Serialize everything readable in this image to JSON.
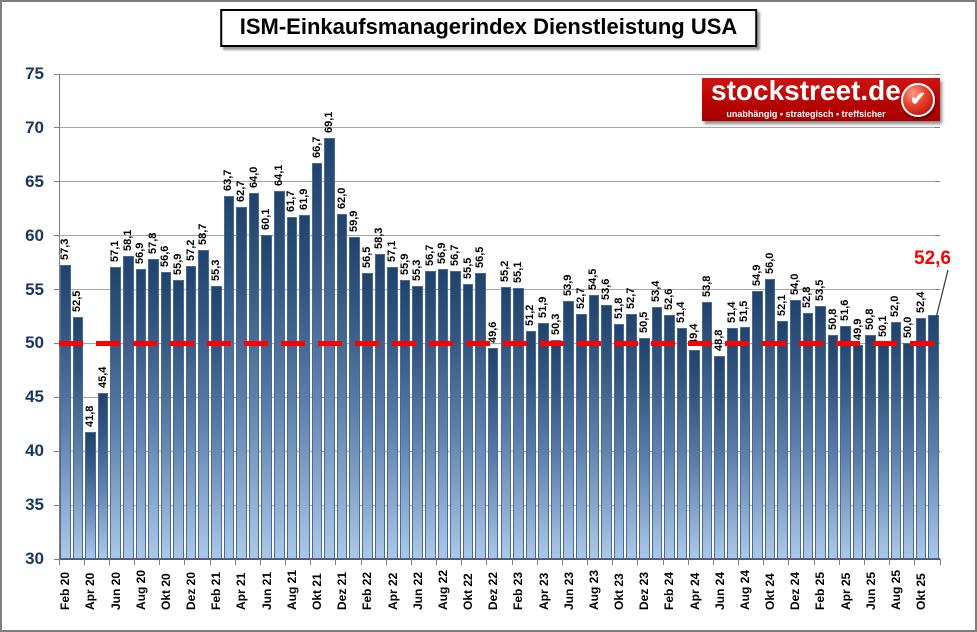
{
  "title": "ISM-Einkaufsmanagerindex Dienstleistung USA",
  "logo": {
    "brand": "stockstreet.de",
    "tagline": "unabhängig • strategisch • treffsicher",
    "bg_color": "#b80404",
    "check_glyph": "✔"
  },
  "callout": {
    "label": "52,6",
    "color": "#fe0000"
  },
  "chart_data": {
    "type": "bar",
    "title": "ISM-Einkaufsmanagerindex Dienstleistung USA",
    "xlabel": "",
    "ylabel": "",
    "ylim": [
      30,
      75
    ],
    "yticks": [
      30,
      35,
      40,
      45,
      50,
      55,
      60,
      65,
      70,
      75
    ],
    "grid": true,
    "legend_position": "none",
    "reference_line": {
      "value": 50,
      "color": "#fe0000",
      "style": "dashed"
    },
    "bar_color_top": "#21436b",
    "bar_color_bottom": "#abc8e8",
    "xtick_labels": [
      "Feb 20",
      "Apr 20",
      "Jun 20",
      "Aug 20",
      "Okt 20",
      "Dez 20",
      "Feb 21",
      "Apr 21",
      "Jun 21",
      "Aug 21",
      "Okt 21",
      "Dez 21",
      "Feb 22",
      "Apr 22",
      "Jun 22",
      "Aug 22",
      "Okt 22",
      "Dez 22",
      "Feb 23",
      "Apr 23",
      "Jun 23",
      "Aug 23",
      "Okt 23",
      "Dez 23",
      "Feb 24",
      "Apr 24",
      "Jun 24",
      "Aug 24",
      "Okt 24",
      "Dez 24",
      "Feb 25",
      "Apr 25",
      "Jun 25",
      "Aug 25",
      "Okt 25"
    ],
    "values": [
      "57,3",
      "52,5",
      "41,8",
      "45,4",
      "57,1",
      "58,1",
      "56,9",
      "57,8",
      "56,6",
      "55,9",
      "57,2",
      "58,7",
      "55,3",
      "63,7",
      "62,7",
      "64,0",
      "60,1",
      "64,1",
      "61,7",
      "61,9",
      "66,7",
      "69,1",
      "62,0",
      "59,9",
      "56,5",
      "58,3",
      "57,1",
      "55,9",
      "55,3",
      "56,7",
      "56,9",
      "56,7",
      "55,5",
      "56,5",
      "49,6",
      "55,2",
      "55,1",
      "51,2",
      "51,9",
      "50,3",
      "53,9",
      "52,7",
      "54,5",
      "53,6",
      "51,8",
      "52,7",
      "50,5",
      "53,4",
      "52,6",
      "51,4",
      "49,4",
      "53,8",
      "48,8",
      "51,4",
      "51,5",
      "54,9",
      "56,0",
      "52,1",
      "54,0",
      "52,8",
      "53,5",
      "50,8",
      "51,6",
      "49,9",
      "50,8",
      "50,1",
      "52,0",
      "50,0",
      "52,4",
      "52,6"
    ],
    "latest_value": "52,6"
  }
}
